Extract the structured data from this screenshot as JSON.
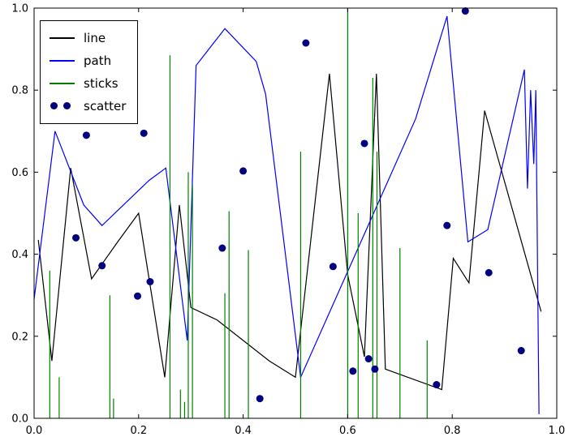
{
  "figure": {
    "background": "#ffffff",
    "frame_color": "#000000",
    "axes": {
      "xlim": [
        0.0,
        1.0
      ],
      "ylim": [
        0.0,
        1.0
      ],
      "x_ticks": [
        0.0,
        0.2,
        0.4,
        0.6,
        0.8,
        1.0
      ],
      "y_ticks": [
        0.0,
        0.2,
        0.4,
        0.6,
        0.8,
        1.0
      ],
      "x_tick_labels": [
        "0.0",
        "0.2",
        "0.4",
        "0.6",
        "0.8",
        "1.0"
      ],
      "y_tick_labels": [
        "0.0",
        "0.2",
        "0.4",
        "0.6",
        "0.8",
        "1.0"
      ]
    },
    "legend": {
      "position": "upper left",
      "entries": [
        {
          "label": "line",
          "color": "#000000",
          "glyph": "line"
        },
        {
          "label": "path",
          "color": "#0000ff",
          "glyph": "line"
        },
        {
          "label": "sticks",
          "color": "#008000",
          "glyph": "line"
        },
        {
          "label": "scatter",
          "color": "#000080",
          "glyph": "dots"
        }
      ]
    }
  },
  "chart_data": {
    "type": "line",
    "title": "",
    "xlabel": "",
    "ylabel": "",
    "xlim": [
      0.0,
      1.0
    ],
    "ylim": [
      0.0,
      1.0
    ],
    "grid": false,
    "legend_position": "upper left",
    "series": [
      {
        "name": "line",
        "type": "line",
        "color": "#000000",
        "x": [
          0.008,
          0.034,
          0.07,
          0.11,
          0.16,
          0.2,
          0.25,
          0.278,
          0.3,
          0.35,
          0.45,
          0.5,
          0.565,
          0.6,
          0.632,
          0.655,
          0.672,
          0.78,
          0.802,
          0.832,
          0.862,
          0.97
        ],
        "y": [
          0.435,
          0.14,
          0.61,
          0.34,
          0.43,
          0.5,
          0.1,
          0.52,
          0.27,
          0.24,
          0.14,
          0.1,
          0.84,
          0.35,
          0.15,
          0.84,
          0.12,
          0.07,
          0.39,
          0.33,
          0.75,
          0.26
        ]
      },
      {
        "name": "path",
        "type": "line",
        "color": "#0000ff",
        "x": [
          0.0,
          0.04,
          0.095,
          0.13,
          0.22,
          0.252,
          0.293,
          0.31,
          0.365,
          0.425,
          0.443,
          0.51,
          0.73,
          0.79,
          0.83,
          0.868,
          0.938,
          0.944,
          0.95,
          0.956,
          0.96,
          0.966
        ],
        "y": [
          0.29,
          0.7,
          0.52,
          0.47,
          0.58,
          0.61,
          0.19,
          0.86,
          0.95,
          0.87,
          0.79,
          0.1,
          0.73,
          0.98,
          0.43,
          0.46,
          0.85,
          0.56,
          0.8,
          0.62,
          0.8,
          0.01
        ]
      },
      {
        "name": "sticks",
        "type": "sticks",
        "color": "#008000",
        "x": [
          0.03,
          0.048,
          0.145,
          0.152,
          0.26,
          0.28,
          0.288,
          0.295,
          0.303,
          0.365,
          0.373,
          0.41,
          0.51,
          0.6,
          0.62,
          0.648,
          0.656,
          0.7,
          0.752
        ],
        "y": [
          0.36,
          0.1,
          0.3,
          0.048,
          0.885,
          0.07,
          0.04,
          0.6,
          0.57,
          0.305,
          0.505,
          0.41,
          0.65,
          1.0,
          0.5,
          0.83,
          0.65,
          0.415,
          0.19
        ]
      },
      {
        "name": "scatter",
        "type": "scatter",
        "color": "#000080",
        "x": [
          0.08,
          0.1,
          0.13,
          0.198,
          0.21,
          0.222,
          0.36,
          0.4,
          0.432,
          0.52,
          0.572,
          0.61,
          0.632,
          0.64,
          0.652,
          0.77,
          0.79,
          0.825,
          0.87,
          0.932
        ],
        "y": [
          0.44,
          0.69,
          0.372,
          0.298,
          0.695,
          0.333,
          0.415,
          0.603,
          0.048,
          0.915,
          0.37,
          0.115,
          0.67,
          0.145,
          0.12,
          0.082,
          0.47,
          0.993,
          0.355,
          0.165
        ]
      }
    ]
  }
}
